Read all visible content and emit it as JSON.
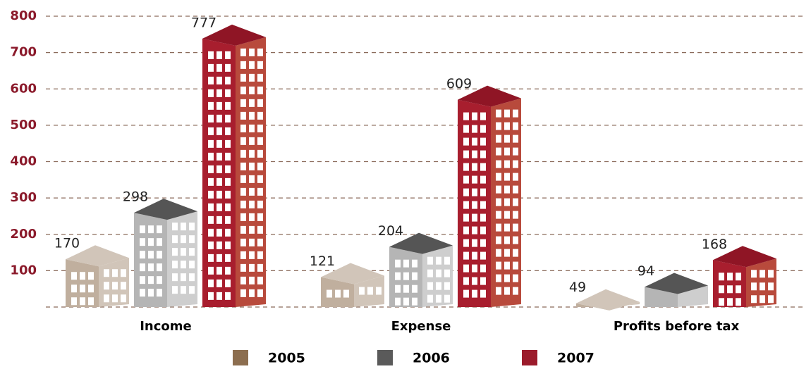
{
  "chart_data": {
    "type": "building-bar",
    "categories": [
      "Income",
      "Expense",
      "Profits before tax"
    ],
    "series": [
      {
        "name": "2005",
        "color": "#8c6e4f",
        "values": [
          170,
          121,
          49
        ]
      },
      {
        "name": "2006",
        "color": "#5a5a5a",
        "values": [
          298,
          204,
          94
        ]
      },
      {
        "name": "2007",
        "color": "#9b1b2b",
        "values": [
          777,
          609,
          168
        ]
      }
    ],
    "ylim": [
      0,
      800
    ],
    "yticks": [
      100,
      200,
      300,
      400,
      500,
      600,
      700,
      800
    ],
    "grid": true
  }
}
